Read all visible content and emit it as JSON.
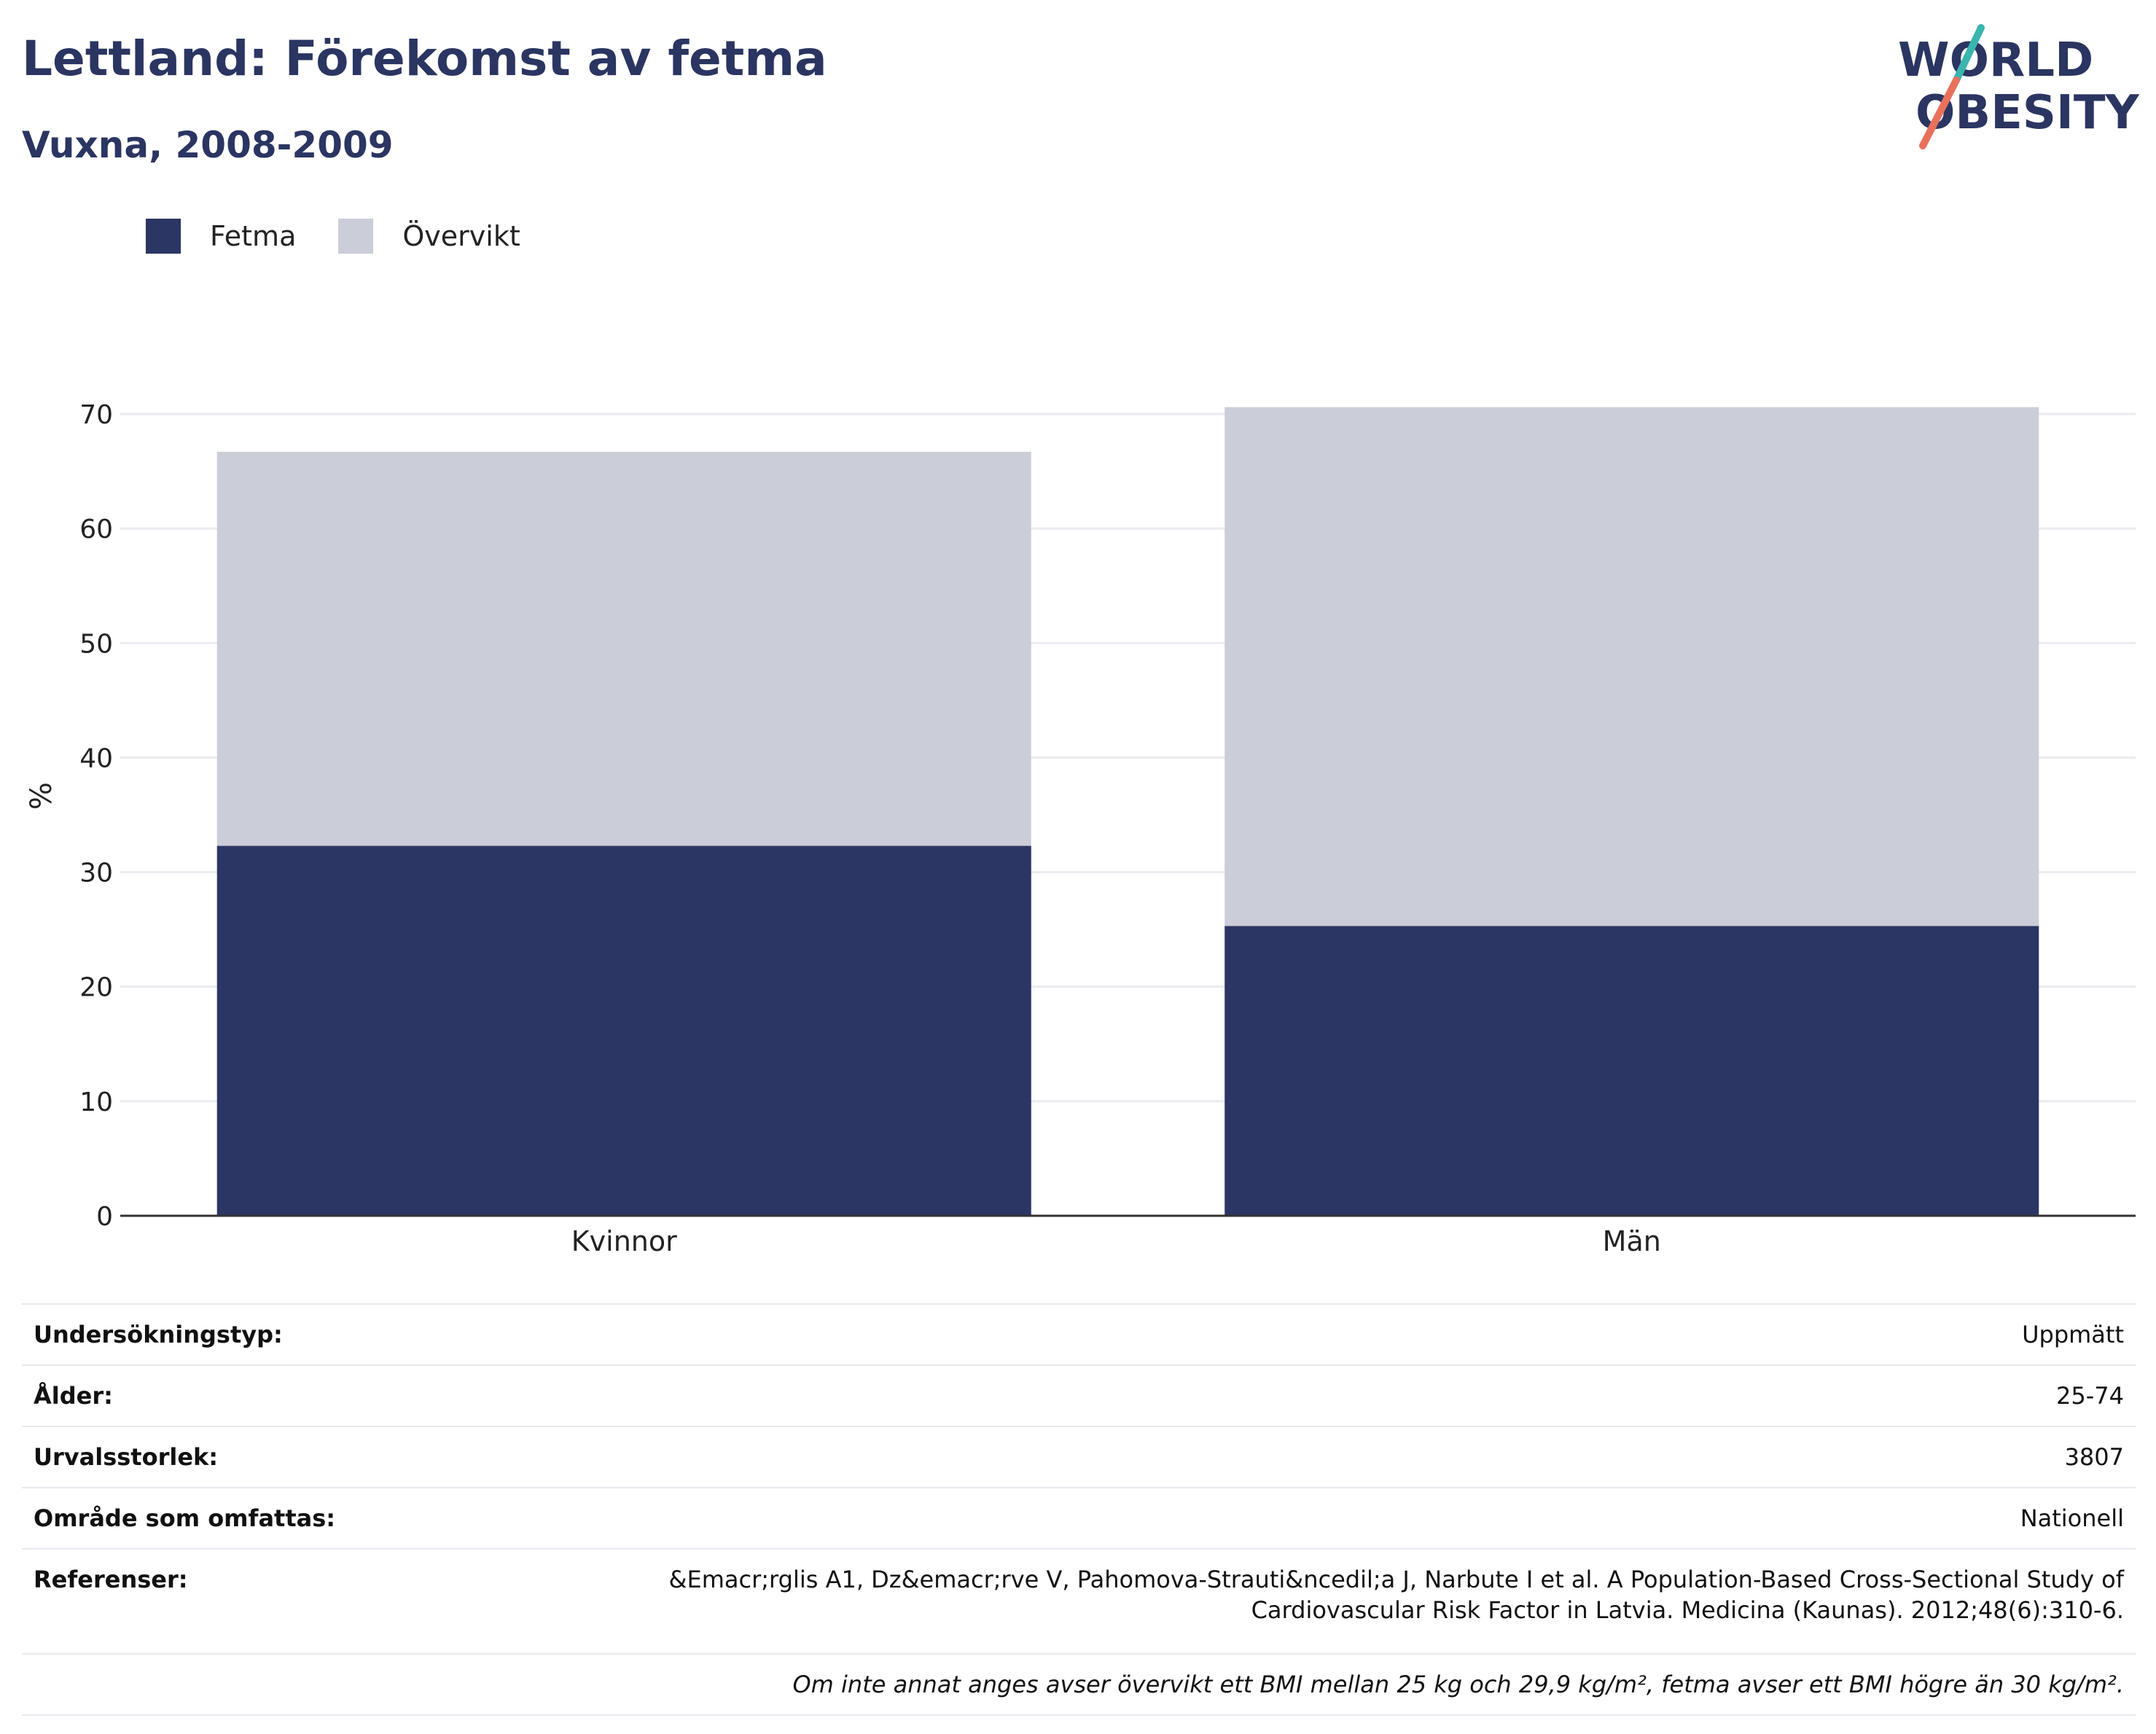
{
  "header": {
    "title": "Lettland: Förekomst av fetma",
    "subtitle": "Vuxna, 2008-2009"
  },
  "logo": {
    "line1": "WORLD",
    "line2": "OBESITY",
    "text_color": "#2b3562",
    "slash_color_top": "#3ab5b0",
    "slash_color_bottom": "#e8715c"
  },
  "colors": {
    "fetma": "#2b3664",
    "overvikt": "#cbcdd8",
    "gridline": "#e9ebf0",
    "axis": "#333333"
  },
  "legend": {
    "items": [
      {
        "label": "Fetma",
        "color": "#2b3664"
      },
      {
        "label": "Övervikt",
        "color": "#cbcdd8"
      }
    ]
  },
  "chart_data": {
    "type": "bar",
    "stacked": true,
    "categories": [
      "Kvinnor",
      "Män"
    ],
    "series": [
      {
        "name": "Fetma",
        "values": [
          32.3,
          25.3
        ]
      },
      {
        "name": "Övervikt",
        "values": [
          34.4,
          45.3
        ]
      }
    ],
    "ylabel": "%",
    "ylim": [
      0,
      70
    ],
    "yticks": [
      0,
      10,
      20,
      30,
      40,
      50,
      60,
      70
    ],
    "grid": true,
    "legend_position": "top-left"
  },
  "info": {
    "rows": [
      {
        "key": "Undersökningstyp:",
        "value": "Uppmätt"
      },
      {
        "key": "Ålder:",
        "value": "25-74"
      },
      {
        "key": "Urvalsstorlek:",
        "value": "3807"
      },
      {
        "key": "Område som omfattas:",
        "value": "Nationell"
      }
    ],
    "reference_key": "Referenser:",
    "reference_line1": "&Emacr;rglis A1, Dz&emacr;rve V, Pahomova-Strauti&ncedil;a J, Narbute I et al. A Population-Based Cross-Sectional Study of",
    "reference_line2": "Cardiovascular Risk Factor in Latvia. Medicina (Kaunas). 2012;48(6):310-6.",
    "note": "Om inte annat anges avser övervikt ett BMI mellan 25 kg och 29,9 kg/m², fetma avser ett BMI högre än 30 kg/m²."
  }
}
